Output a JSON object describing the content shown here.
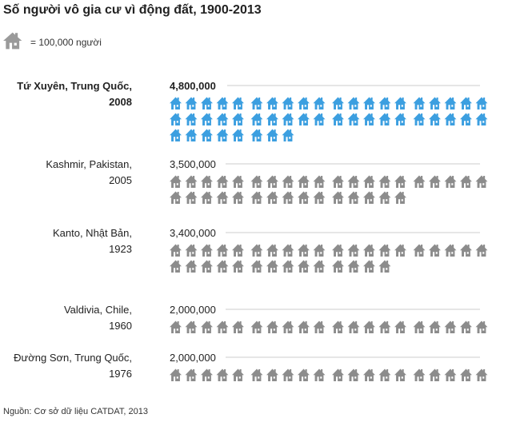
{
  "title": "Số người vô gia cư vì động đất, 1900-2013",
  "legend": {
    "icon": "house-icon",
    "text": "= 100,000 người"
  },
  "source": "Nguồn: Cơ sở dữ liệu CATDAT, 2013",
  "colors": {
    "highlight": "#3c9fe0",
    "normal": "#8c8c8c",
    "legend": "#9a9a9a",
    "line": "#cccccc",
    "text": "#222222"
  },
  "chart_data": {
    "type": "pictogram",
    "unit": 100000,
    "categories": [
      {
        "label_lines": [
          "Tứ Xuyên, Trung Quốc,",
          "2008"
        ],
        "value_label": "4,800,000",
        "value": 4800000,
        "highlight": true
      },
      {
        "label_lines": [
          "Kashmir, Pakistan,",
          "2005"
        ],
        "value_label": "3,500,000",
        "value": 3500000,
        "highlight": false
      },
      {
        "label_lines": [
          "Kanto, Nhật Bản,",
          "1923"
        ],
        "value_label": "3,400,000",
        "value": 3400000,
        "highlight": false
      },
      {
        "label_lines": [
          "Valdivia, Chile,",
          "1960"
        ],
        "value_label": "2,000,000",
        "value": 2000000,
        "highlight": false
      },
      {
        "label_lines": [
          "Đường Sơn, Trung Quốc,",
          "1976"
        ],
        "value_label": "2,000,000",
        "value": 2000000,
        "highlight": false
      }
    ]
  }
}
